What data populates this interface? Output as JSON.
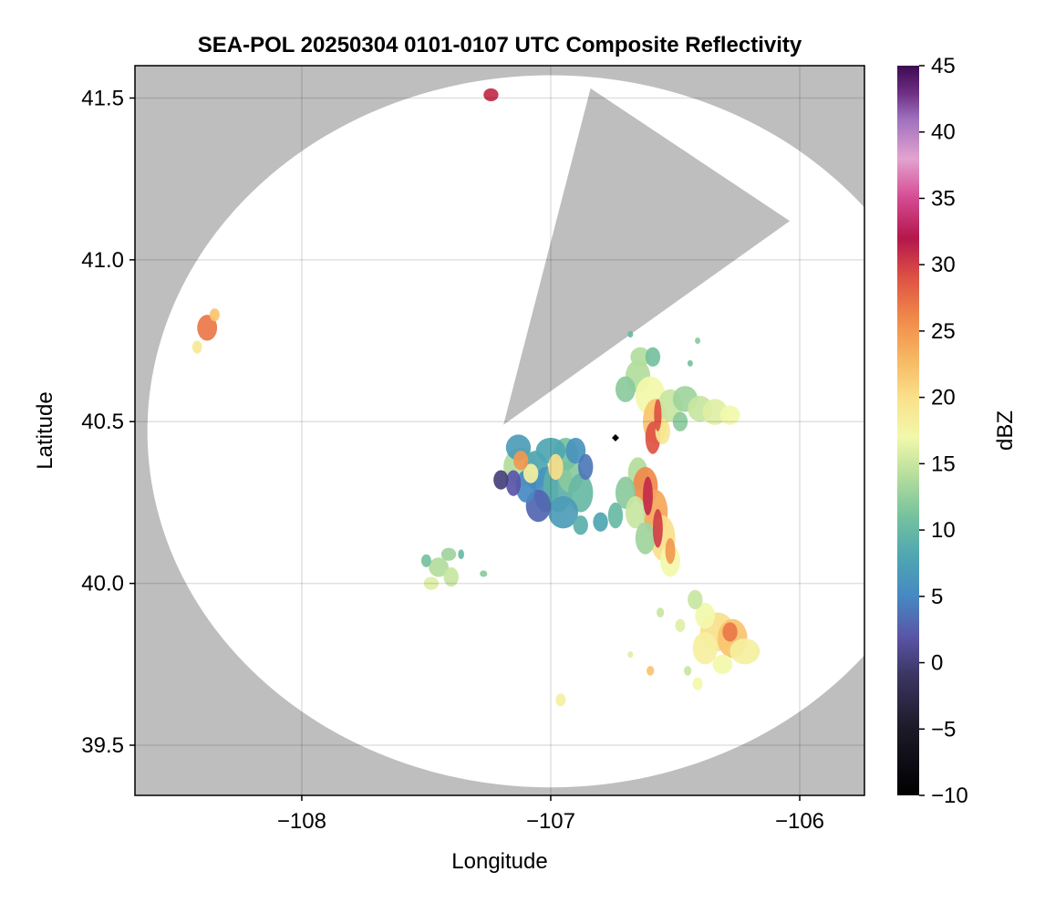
{
  "chart_data": {
    "type": "heatmap",
    "title": "SEA-POL 20250304 0101-0107 UTC Composite Reflectivity",
    "xlabel": "Longitude",
    "ylabel": "Latitude",
    "xlim": [
      -108.67,
      -105.74
    ],
    "ylim": [
      39.345,
      41.6
    ],
    "x_ticks": [
      -108,
      -107,
      -106
    ],
    "x_tick_labels": [
      "−108",
      "−107",
      "−106"
    ],
    "y_ticks": [
      39.5,
      40.0,
      40.5,
      41.0,
      41.5
    ],
    "y_tick_labels": [
      "39.5",
      "40.0",
      "40.5",
      "41.0",
      "41.5"
    ],
    "grid": true,
    "background_color": "#bebebe",
    "coverage": {
      "center": [
        -107.0,
        40.47
      ],
      "range_deg_lon": 1.62,
      "range_deg_lat": 1.1,
      "blocked_sector": [
        [
          -107.19,
          40.49
        ],
        [
          -106.84,
          41.53
        ],
        [
          -106.04,
          41.12
        ]
      ]
    },
    "radar_site": [
      -106.74,
      40.45
    ],
    "colorbar": {
      "label": "dBZ",
      "min": -10,
      "max": 45,
      "ticks": [
        -10,
        -5,
        0,
        5,
        10,
        15,
        20,
        25,
        30,
        35,
        40,
        45
      ],
      "tick_labels": [
        "−10",
        "−5",
        "0",
        "5",
        "10",
        "15",
        "20",
        "25",
        "30",
        "35",
        "40",
        "45"
      ],
      "colormap": "spectral_extended",
      "stops": [
        [
          -10,
          "#000000"
        ],
        [
          -5,
          "#1c1a28"
        ],
        [
          -1,
          "#3b3561"
        ],
        [
          2,
          "#5a55a8"
        ],
        [
          5,
          "#4689c2"
        ],
        [
          8,
          "#4fa6b2"
        ],
        [
          11,
          "#75c19e"
        ],
        [
          14,
          "#b3dd9c"
        ],
        [
          17,
          "#f3f8aa"
        ],
        [
          20,
          "#f9e08b"
        ],
        [
          23,
          "#f7b660"
        ],
        [
          26,
          "#f0894a"
        ],
        [
          29,
          "#de5244"
        ],
        [
          32,
          "#b4174c"
        ],
        [
          35,
          "#d44a92"
        ],
        [
          38,
          "#e3a3cf"
        ],
        [
          41,
          "#9e70bd"
        ],
        [
          43,
          "#6c2d82"
        ],
        [
          45,
          "#3d0b52"
        ]
      ]
    },
    "echoes": [
      {
        "cells": [
          [
            -107.12,
            40.36,
            0.07,
            0.06,
            14
          ],
          [
            -107.06,
            40.35,
            0.05,
            0.06,
            8
          ],
          [
            -107.02,
            40.29,
            0.05,
            0.07,
            6
          ],
          [
            -106.97,
            40.3,
            0.06,
            0.08,
            9
          ],
          [
            -106.92,
            40.33,
            0.05,
            0.05,
            12
          ],
          [
            -106.88,
            40.28,
            0.05,
            0.06,
            10
          ],
          [
            -106.95,
            40.22,
            0.06,
            0.05,
            7
          ],
          [
            -107.05,
            40.24,
            0.05,
            0.05,
            3
          ],
          [
            -107.1,
            40.3,
            0.04,
            0.05,
            5
          ],
          [
            -107.15,
            40.31,
            0.03,
            0.04,
            2
          ],
          [
            -106.94,
            40.4,
            0.05,
            0.05,
            11
          ],
          [
            -107.0,
            40.41,
            0.06,
            0.04,
            8
          ],
          [
            -106.9,
            40.41,
            0.04,
            0.04,
            6
          ],
          [
            -106.86,
            40.36,
            0.03,
            0.04,
            4
          ],
          [
            -107.13,
            40.42,
            0.05,
            0.04,
            7
          ],
          [
            -107.2,
            40.32,
            0.03,
            0.03,
            0
          ],
          [
            -106.98,
            40.36,
            0.03,
            0.04,
            20
          ],
          [
            -107.08,
            40.34,
            0.03,
            0.03,
            18
          ],
          [
            -107.12,
            40.38,
            0.03,
            0.03,
            25
          ],
          [
            -106.88,
            40.18,
            0.03,
            0.03,
            9
          ]
        ]
      },
      {
        "cells": [
          [
            -106.65,
            40.34,
            0.04,
            0.05,
            14
          ],
          [
            -106.62,
            40.3,
            0.05,
            0.06,
            26
          ],
          [
            -106.58,
            40.22,
            0.05,
            0.07,
            24
          ],
          [
            -106.55,
            40.14,
            0.05,
            0.07,
            20
          ],
          [
            -106.52,
            40.07,
            0.04,
            0.05,
            17
          ],
          [
            -106.7,
            40.28,
            0.04,
            0.05,
            12
          ],
          [
            -106.66,
            40.22,
            0.04,
            0.05,
            15
          ],
          [
            -106.62,
            40.14,
            0.04,
            0.05,
            13
          ],
          [
            -106.61,
            40.27,
            0.02,
            0.06,
            31
          ],
          [
            -106.57,
            40.17,
            0.02,
            0.06,
            30
          ],
          [
            -106.52,
            40.1,
            0.02,
            0.04,
            25
          ],
          [
            -106.74,
            40.21,
            0.03,
            0.04,
            10
          ],
          [
            -106.8,
            40.19,
            0.03,
            0.03,
            8
          ]
        ]
      },
      {
        "cells": [
          [
            -106.65,
            40.64,
            0.05,
            0.05,
            14
          ],
          [
            -106.6,
            40.58,
            0.06,
            0.06,
            17
          ],
          [
            -106.58,
            40.5,
            0.05,
            0.07,
            22
          ],
          [
            -106.59,
            40.45,
            0.03,
            0.05,
            29
          ],
          [
            -106.52,
            40.55,
            0.05,
            0.05,
            15
          ],
          [
            -106.46,
            40.57,
            0.05,
            0.04,
            13
          ],
          [
            -106.4,
            40.54,
            0.05,
            0.04,
            15
          ],
          [
            -106.34,
            40.53,
            0.05,
            0.04,
            16
          ],
          [
            -106.28,
            40.52,
            0.04,
            0.03,
            17
          ],
          [
            -106.7,
            40.6,
            0.04,
            0.04,
            12
          ],
          [
            -106.64,
            40.7,
            0.04,
            0.03,
            14
          ],
          [
            -106.59,
            40.7,
            0.03,
            0.03,
            11
          ],
          [
            -106.55,
            40.47,
            0.03,
            0.04,
            19
          ],
          [
            -106.57,
            40.52,
            0.015,
            0.05,
            29
          ],
          [
            -106.48,
            40.5,
            0.03,
            0.03,
            12
          ]
        ]
      },
      {
        "cells": [
          [
            -106.33,
            39.85,
            0.07,
            0.06,
            20
          ],
          [
            -106.27,
            39.83,
            0.06,
            0.06,
            22
          ],
          [
            -106.22,
            39.79,
            0.06,
            0.04,
            18
          ],
          [
            -106.38,
            39.8,
            0.05,
            0.05,
            18
          ],
          [
            -106.38,
            39.9,
            0.04,
            0.04,
            17
          ],
          [
            -106.42,
            39.95,
            0.03,
            0.03,
            15
          ],
          [
            -106.28,
            39.85,
            0.03,
            0.03,
            27
          ],
          [
            -106.31,
            39.75,
            0.04,
            0.03,
            17
          ],
          [
            -106.48,
            39.87,
            0.02,
            0.02,
            16
          ]
        ]
      },
      {
        "cells": [
          [
            -107.45,
            40.05,
            0.04,
            0.03,
            14
          ],
          [
            -107.4,
            40.02,
            0.03,
            0.03,
            15
          ],
          [
            -107.48,
            40.0,
            0.03,
            0.02,
            16
          ],
          [
            -107.41,
            40.09,
            0.03,
            0.02,
            13
          ],
          [
            -107.5,
            40.07,
            0.02,
            0.02,
            11
          ],
          [
            -107.27,
            40.03,
            0.015,
            0.01,
            12
          ],
          [
            -107.36,
            40.09,
            0.012,
            0.015,
            10
          ]
        ]
      },
      {
        "cells": [
          [
            -108.38,
            40.79,
            0.04,
            0.04,
            27
          ],
          [
            -108.35,
            40.83,
            0.02,
            0.02,
            22
          ],
          [
            -108.42,
            40.73,
            0.02,
            0.02,
            19
          ]
        ]
      },
      {
        "cells": [
          [
            -107.24,
            41.51,
            0.03,
            0.02,
            31
          ]
        ]
      },
      {
        "cells": [
          [
            -106.96,
            39.64,
            0.02,
            0.02,
            18
          ],
          [
            -106.6,
            39.73,
            0.015,
            0.015,
            22
          ],
          [
            -106.41,
            39.69,
            0.02,
            0.02,
            17
          ],
          [
            -106.45,
            39.73,
            0.015,
            0.015,
            15
          ],
          [
            -106.68,
            39.78,
            0.01,
            0.01,
            16
          ],
          [
            -106.56,
            39.91,
            0.015,
            0.015,
            15
          ],
          [
            -106.41,
            40.75,
            0.01,
            0.01,
            12
          ],
          [
            -106.44,
            40.68,
            0.01,
            0.01,
            11
          ],
          [
            -106.68,
            40.77,
            0.01,
            0.01,
            10
          ]
        ]
      }
    ]
  }
}
